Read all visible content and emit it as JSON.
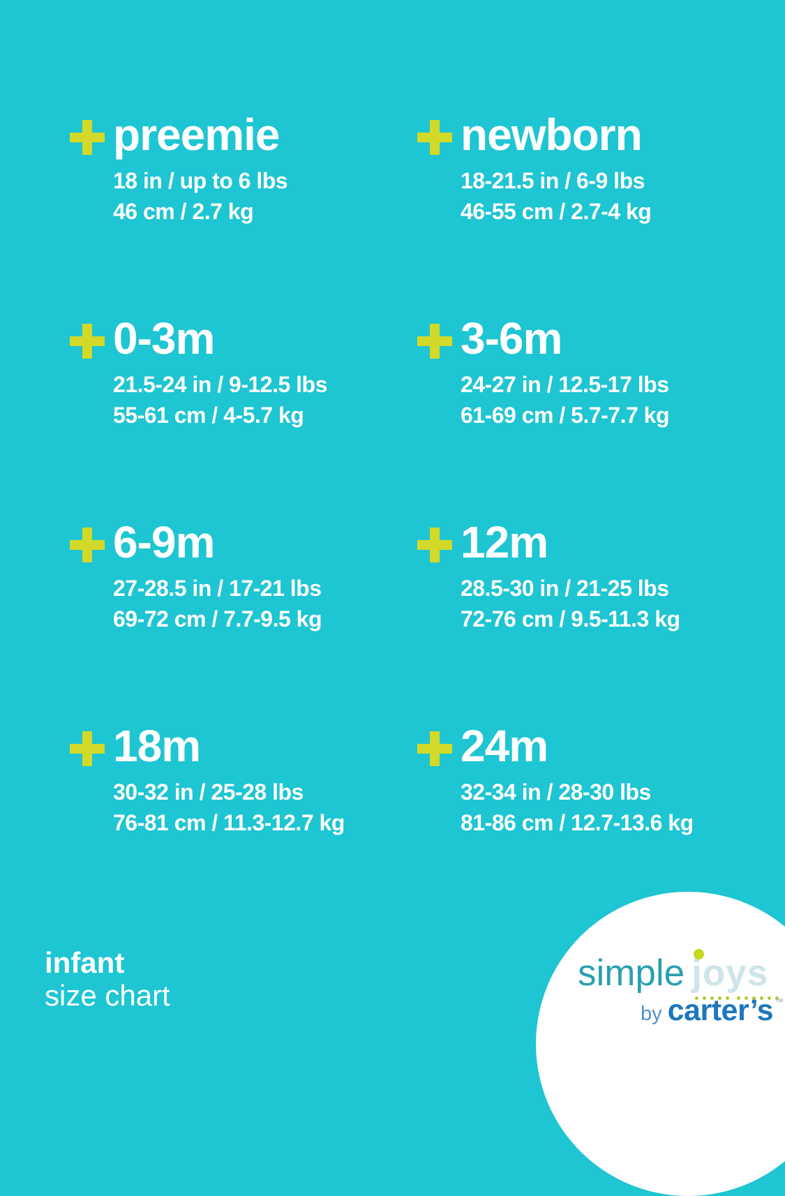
{
  "page": {
    "bullet_icon": "plus",
    "colors": {
      "background": "#1EC5D2",
      "plus_accent": "#D3D928",
      "text": "#FFFFFF",
      "logo_simple": "#2AA0AF",
      "logo_joys": "#CFE3EB",
      "logo_dot": "#C3D81E",
      "logo_by": "#4E93C7",
      "logo_carters": "#1C77BD"
    }
  },
  "sizes": [
    {
      "name": "preemie",
      "imperial": "18 in / up to 6 lbs",
      "metric": "46 cm / 2.7 kg"
    },
    {
      "name": "newborn",
      "imperial": "18-21.5 in / 6-9 lbs",
      "metric": "46-55 cm / 2.7-4 kg"
    },
    {
      "name": "0-3m",
      "imperial": "21.5-24 in / 9-12.5 lbs",
      "metric": "55-61 cm / 4-5.7 kg"
    },
    {
      "name": "3-6m",
      "imperial": "24-27 in / 12.5-17 lbs",
      "metric": "61-69 cm / 5.7-7.7 kg"
    },
    {
      "name": "6-9m",
      "imperial": "27-28.5 in / 17-21 lbs",
      "metric": "69-72 cm / 7.7-9.5 kg"
    },
    {
      "name": "12m",
      "imperial": "28.5-30 in / 21-25 lbs",
      "metric": "72-76 cm / 9.5-11.3 kg"
    },
    {
      "name": "18m",
      "imperial": "30-32 in / 25-28 lbs",
      "metric": "76-81 cm / 11.3-12.7 kg"
    },
    {
      "name": "24m",
      "imperial": "32-34 in / 28-30 lbs",
      "metric": "81-86 cm / 12.7-13.6 kg"
    }
  ],
  "footer": {
    "line1": "infant",
    "line2": "size chart"
  },
  "logo": {
    "simple": "simple",
    "joys": "joys",
    "by": "by",
    "carters": "carter’s",
    "trademark": "™"
  }
}
